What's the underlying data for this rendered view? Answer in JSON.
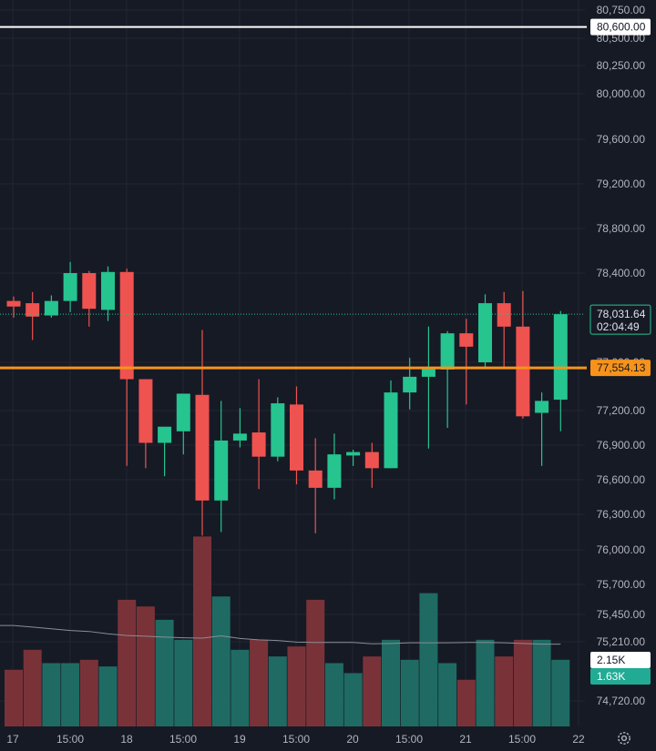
{
  "chart_data": {
    "type": "candlestick",
    "y_axis_ticks": [
      "80,750.00",
      "80,500.00",
      "80,250.00",
      "80,000.00",
      "79,600.00",
      "79,200.00",
      "78,800.00",
      "78,400.00",
      "77,600.00",
      "77,200.00",
      "76,900.00",
      "76,600.00",
      "76,300.00",
      "76,000.00",
      "75,700.00",
      "75,450.00",
      "75,210.00",
      "74,720.00"
    ],
    "x_axis_ticks": [
      "17",
      "15:00",
      "18",
      "15:00",
      "19",
      "15:00",
      "20",
      "15:00",
      "21",
      "15:00",
      "22"
    ],
    "candles": [
      {
        "o": 78150,
        "h": 78190,
        "l": 78000,
        "c": 78100
      },
      {
        "o": 78130,
        "h": 78230,
        "l": 77800,
        "c": 78010
      },
      {
        "o": 78020,
        "h": 78200,
        "l": 78000,
        "c": 78150
      },
      {
        "o": 78150,
        "h": 78500,
        "l": 78050,
        "c": 78400
      },
      {
        "o": 78400,
        "h": 78420,
        "l": 77920,
        "c": 78080
      },
      {
        "o": 78070,
        "h": 78460,
        "l": 77970,
        "c": 78410
      },
      {
        "o": 78410,
        "h": 78440,
        "l": 76720,
        "c": 77460
      },
      {
        "o": 77460,
        "h": 77460,
        "l": 76700,
        "c": 76920
      },
      {
        "o": 76920,
        "h": 77050,
        "l": 76630,
        "c": 77060
      },
      {
        "o": 77020,
        "h": 77320,
        "l": 76820,
        "c": 77340
      },
      {
        "o": 77330,
        "h": 77890,
        "l": 76120,
        "c": 76420
      },
      {
        "o": 76420,
        "h": 77280,
        "l": 76150,
        "c": 76940
      },
      {
        "o": 76940,
        "h": 77220,
        "l": 76880,
        "c": 77000
      },
      {
        "o": 77010,
        "h": 77460,
        "l": 76520,
        "c": 76800
      },
      {
        "o": 76800,
        "h": 77310,
        "l": 76760,
        "c": 77260
      },
      {
        "o": 77250,
        "h": 77400,
        "l": 76560,
        "c": 76680
      },
      {
        "o": 76680,
        "h": 76960,
        "l": 76140,
        "c": 76530
      },
      {
        "o": 76530,
        "h": 77000,
        "l": 76430,
        "c": 76820
      },
      {
        "o": 76810,
        "h": 76860,
        "l": 76720,
        "c": 76840
      },
      {
        "o": 76840,
        "h": 76920,
        "l": 76530,
        "c": 76700
      },
      {
        "o": 76700,
        "h": 77450,
        "l": 76700,
        "c": 77350
      },
      {
        "o": 77350,
        "h": 77640,
        "l": 77210,
        "c": 77480
      },
      {
        "o": 77480,
        "h": 77920,
        "l": 76870,
        "c": 77550
      },
      {
        "o": 77540,
        "h": 77880,
        "l": 77050,
        "c": 77860
      },
      {
        "o": 77860,
        "h": 77990,
        "l": 77250,
        "c": 77740
      },
      {
        "o": 77600,
        "h": 78210,
        "l": 77560,
        "c": 78130
      },
      {
        "o": 78130,
        "h": 78230,
        "l": 77560,
        "c": 77920
      },
      {
        "o": 77920,
        "h": 78240,
        "l": 77130,
        "c": 77150
      },
      {
        "o": 77180,
        "h": 77350,
        "l": 76720,
        "c": 77280
      },
      {
        "o": 77290,
        "h": 78060,
        "l": 77020,
        "c": 78031.64
      }
    ],
    "volume_series": [
      {
        "name": "Volume",
        "values": [
          1.7,
          2.3,
          1.9,
          1.9,
          2.0,
          1.8,
          3.8,
          3.6,
          3.2,
          2.6,
          5.7,
          3.9,
          2.3,
          2.6,
          2.1,
          2.4,
          3.8,
          1.9,
          1.6,
          2.1,
          2.6,
          2.0,
          4.0,
          1.9,
          1.4,
          2.6,
          2.1,
          2.6,
          2.6,
          2.0
        ]
      },
      {
        "name": "Volume MA",
        "values": [
          3.03,
          2.98,
          2.93,
          2.88,
          2.85,
          2.78,
          2.73,
          2.71,
          2.68,
          2.66,
          2.65,
          2.72,
          2.64,
          2.6,
          2.58,
          2.53,
          2.52,
          2.52,
          2.52,
          2.48,
          2.49,
          2.51,
          2.51,
          2.51,
          2.52,
          2.52,
          2.51,
          2.49,
          2.47,
          2.47
        ]
      }
    ],
    "horizontal_lines": [
      {
        "label": "80,600.00",
        "value": 80600,
        "color": "#ffffff"
      },
      {
        "label": "77,554.13",
        "value": 77554.13,
        "color": "#f7931a"
      }
    ],
    "current_price": {
      "value": "78,031.64",
      "countdown": "02:04:49"
    },
    "volume_badges": [
      {
        "label": "2.15K",
        "color": "#ffffff"
      },
      {
        "label": "1.63K",
        "color": "#22ab94"
      }
    ],
    "colors": {
      "up": "#26c48f",
      "down": "#ef5350",
      "background": "#161a25",
      "grid": "#232632",
      "text": "#b2b5be",
      "volume_up": "#1f6b63",
      "volume_down": "#7a3239"
    }
  }
}
